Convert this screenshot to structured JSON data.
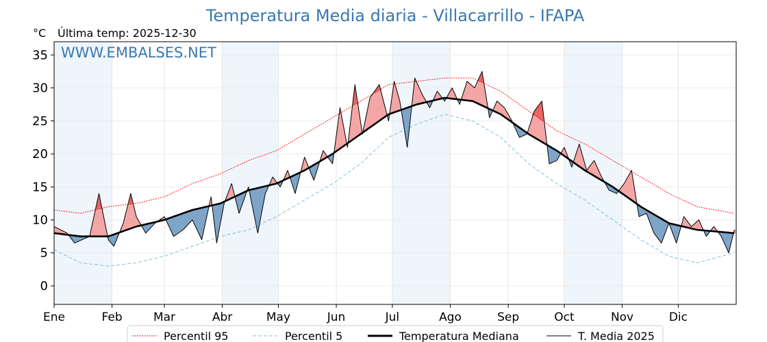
{
  "chart_data": {
    "type": "line",
    "title": "Temperatura Media diaria - Villacarrillo - IFAPA",
    "unit_label": "°C",
    "last_temp_label": "Última temp: 2025-12-30",
    "watermark": "WWW.EMBALSES.NET",
    "ylim": [
      -2.8,
      37
    ],
    "yticks": [
      0,
      5,
      10,
      15,
      20,
      25,
      30,
      35
    ],
    "xlim": [
      1,
      366
    ],
    "months": [
      {
        "label": "Ene",
        "day": 1
      },
      {
        "label": "Feb",
        "day": 32
      },
      {
        "label": "Mar",
        "day": 60
      },
      {
        "label": "Abr",
        "day": 91
      },
      {
        "label": "May",
        "day": 121
      },
      {
        "label": "Jun",
        "day": 152
      },
      {
        "label": "Jul",
        "day": 182
      },
      {
        "label": "Ago",
        "day": 213
      },
      {
        "label": "Sep",
        "day": 244
      },
      {
        "label": "Oct",
        "day": 274
      },
      {
        "label": "Nov",
        "day": 305
      },
      {
        "label": "Dic",
        "day": 335
      }
    ],
    "grid": true,
    "legend_position": "bottom-center",
    "colors": {
      "p95": "#ff0000",
      "p5": "#7ec0dd",
      "median": "#000000",
      "year": "#000000",
      "above": "#f4a6a6",
      "above_p95": "#e96464",
      "below": "#7ea4c8",
      "band": "#eef5fb"
    },
    "shaded_months": [
      "Ene",
      "Abr",
      "Jul",
      "Oct"
    ],
    "series": [
      {
        "name": "Percentil 95",
        "style": "dotted",
        "x": [
          1,
          15,
          30,
          45,
          60,
          75,
          90,
          105,
          120,
          135,
          150,
          165,
          180,
          195,
          210,
          225,
          240,
          255,
          270,
          285,
          300,
          315,
          330,
          345,
          365
        ],
        "y": [
          11.5,
          11.0,
          12.0,
          12.5,
          13.5,
          15.5,
          17.0,
          19.0,
          20.5,
          23.0,
          25.5,
          28.0,
          30.5,
          31.0,
          31.5,
          31.5,
          29.5,
          26.5,
          23.5,
          21.5,
          19.0,
          16.5,
          14.0,
          12.0,
          11.0
        ]
      },
      {
        "name": "Percentil 5",
        "style": "dashed",
        "x": [
          1,
          15,
          30,
          45,
          60,
          75,
          90,
          105,
          120,
          135,
          150,
          165,
          180,
          195,
          210,
          225,
          240,
          255,
          270,
          285,
          300,
          315,
          330,
          345,
          365
        ],
        "y": [
          5.5,
          3.5,
          3.0,
          3.5,
          4.5,
          6.0,
          7.5,
          8.5,
          10.5,
          13.0,
          15.5,
          18.5,
          22.5,
          24.5,
          26.0,
          25.0,
          22.5,
          18.5,
          15.5,
          13.0,
          10.0,
          7.0,
          4.5,
          3.5,
          5.0
        ]
      },
      {
        "name": "Temperatura Mediana",
        "style": "solid-thick",
        "x": [
          1,
          15,
          30,
          45,
          60,
          75,
          90,
          105,
          120,
          135,
          150,
          165,
          180,
          195,
          210,
          225,
          240,
          255,
          270,
          285,
          300,
          315,
          330,
          345,
          365
        ],
        "y": [
          8.0,
          7.5,
          7.5,
          9.0,
          10.0,
          11.5,
          12.5,
          14.5,
          15.5,
          17.5,
          20.0,
          23.0,
          26.0,
          27.5,
          28.5,
          28.0,
          26.0,
          23.0,
          20.5,
          17.5,
          15.0,
          12.0,
          9.5,
          8.5,
          8.0
        ]
      },
      {
        "name": "T. Media 2025",
        "style": "solid-thin",
        "x": [
          1,
          8,
          12,
          16,
          20,
          25,
          30,
          33,
          38,
          42,
          45,
          50,
          55,
          60,
          65,
          70,
          75,
          80,
          85,
          88,
          92,
          96,
          100,
          105,
          110,
          114,
          118,
          122,
          126,
          130,
          135,
          140,
          145,
          150,
          154,
          158,
          162,
          166,
          170,
          175,
          180,
          183,
          186,
          190,
          194,
          198,
          202,
          206,
          210,
          214,
          218,
          222,
          226,
          230,
          234,
          238,
          242,
          246,
          250,
          254,
          258,
          262,
          266,
          270,
          274,
          278,
          282,
          286,
          290,
          294,
          298,
          302,
          306,
          310,
          314,
          318,
          322,
          326,
          330,
          334,
          338,
          342,
          346,
          350,
          354,
          358,
          362,
          365
        ],
        "y": [
          9.0,
          8.0,
          6.5,
          7.0,
          7.5,
          14.0,
          7.0,
          6.0,
          9.5,
          14.0,
          10.5,
          8.0,
          9.5,
          10.5,
          7.5,
          8.5,
          10.0,
          7.0,
          13.5,
          6.5,
          12.5,
          15.5,
          11.0,
          15.0,
          8.0,
          14.0,
          16.5,
          15.0,
          17.5,
          14.0,
          19.5,
          16.0,
          20.5,
          18.5,
          27.0,
          21.0,
          30.5,
          23.0,
          28.5,
          30.5,
          25.0,
          31.0,
          28.0,
          21.0,
          31.5,
          29.0,
          27.0,
          29.5,
          28.0,
          30.0,
          27.5,
          31.0,
          30.0,
          32.5,
          25.5,
          28.0,
          27.0,
          25.0,
          22.5,
          23.0,
          26.5,
          28.0,
          18.5,
          19.0,
          21.0,
          18.0,
          21.5,
          17.5,
          19.0,
          16.5,
          14.5,
          14.0,
          15.5,
          17.5,
          10.5,
          11.0,
          8.0,
          6.5,
          9.5,
          6.5,
          10.5,
          9.0,
          10.0,
          7.5,
          9.0,
          7.5,
          5.0,
          8.5
        ]
      }
    ],
    "legend": [
      "Percentil 95",
      "Percentil 5",
      "Temperatura Mediana",
      "T. Media 2025"
    ]
  }
}
